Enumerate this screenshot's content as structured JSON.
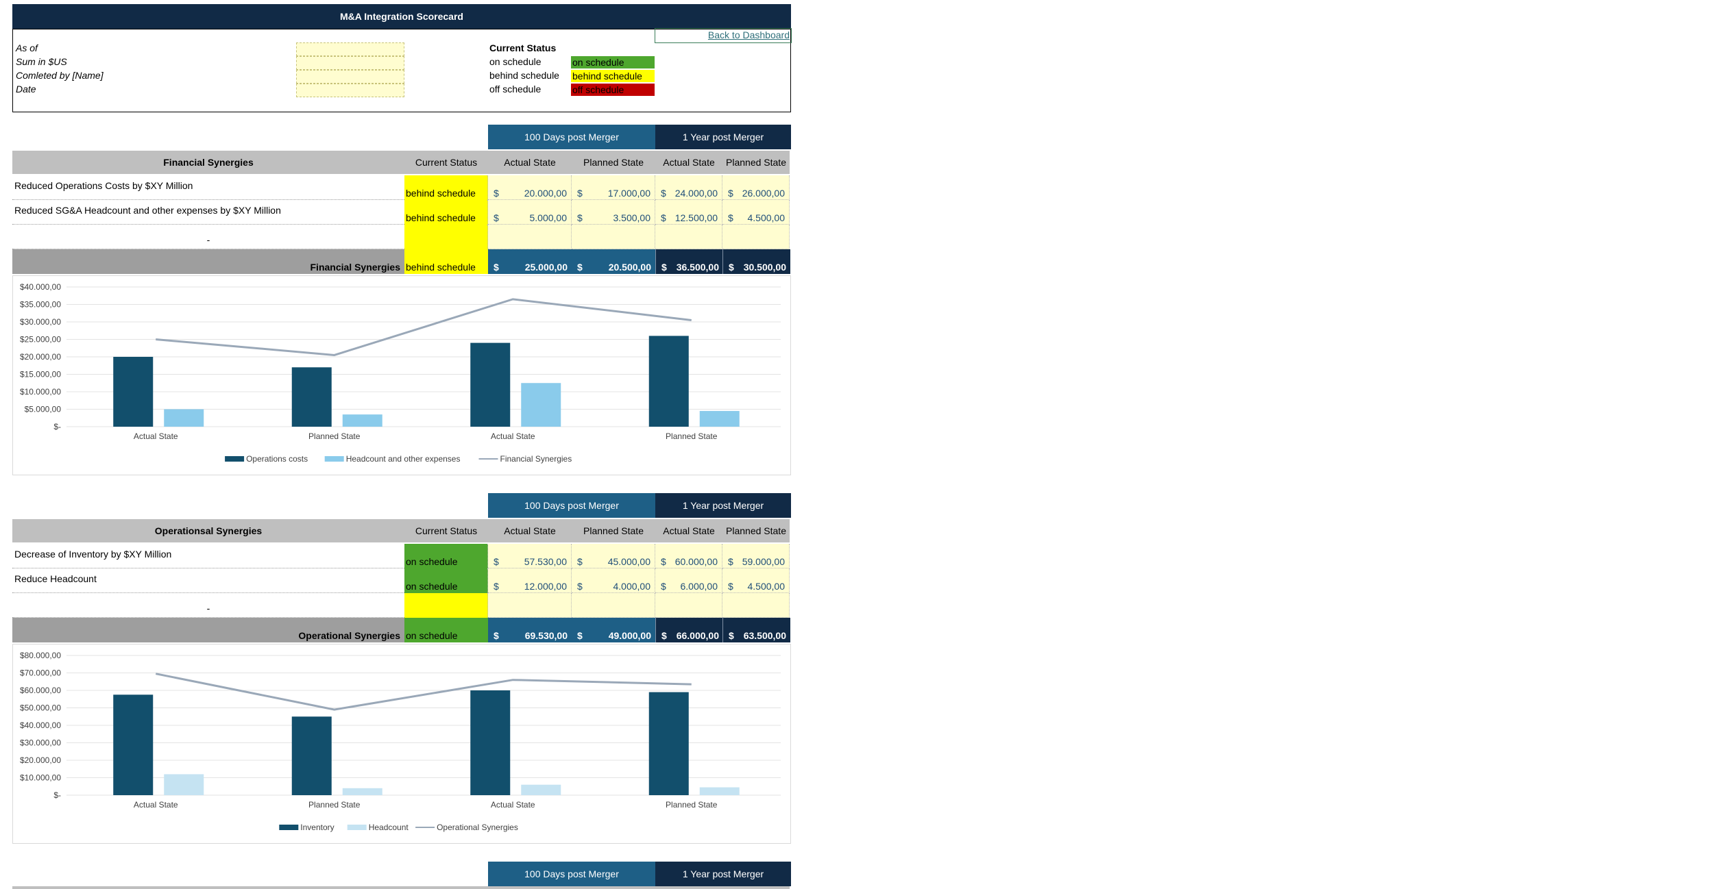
{
  "header": {
    "title": "M&A Integration Scorecard",
    "back_link": "Back to Dashboard"
  },
  "info": {
    "fields": [
      "As of",
      "Sum in $US",
      "Comleted by [Name]",
      "Date"
    ],
    "status_title": "Current Status",
    "legend": [
      {
        "label": "on schedule",
        "swatch": "on schedule",
        "color": "#4ea72e"
      },
      {
        "label": "behind schedule",
        "swatch": "behind schedule",
        "color": "#ffff00"
      },
      {
        "label": "off schedule",
        "swatch": "off schedule",
        "color": "#c00000"
      }
    ]
  },
  "colors": {
    "on schedule": "#4ea72e",
    "behind schedule": "#ffff00",
    "off schedule": "#c00000",
    "dark": "#112a46",
    "blue": "#1e5f86",
    "input_yellow": "#fffdd0"
  },
  "periods": {
    "a": "100 Days post Merger",
    "b": "1 Year post Merger"
  },
  "columns": {
    "status": "Current Status",
    "actual": "Actual State",
    "planned": "Planned State"
  },
  "sections": [
    {
      "title": "Financial Synergies",
      "rows": [
        {
          "label": "Reduced Operations Costs by $XY Million",
          "status": "behind schedule",
          "values": [
            "20.000,00",
            "17.000,00",
            "24.000,00",
            "26.000,00"
          ]
        },
        {
          "label": "Reduced SG&A Headcount and other expenses by $XY Million",
          "status": "behind schedule",
          "values": [
            "5.000,00",
            "3.500,00",
            "12.500,00",
            "4.500,00"
          ]
        },
        {
          "label": "-",
          "status": "",
          "values": [
            "",
            "",
            "",
            ""
          ]
        }
      ],
      "total": {
        "label": "Financial Synergies",
        "status": "behind schedule",
        "values": [
          "25.000,00",
          "20.500,00",
          "36.500,00",
          "30.500,00"
        ]
      }
    },
    {
      "title": "Operationsal Synergies",
      "rows": [
        {
          "label": "Decrease of Inventory by $XY Million",
          "status": "on schedule",
          "values": [
            "57.530,00",
            "45.000,00",
            "60.000,00",
            "59.000,00"
          ]
        },
        {
          "label": "Reduce Headcount",
          "status": "on schedule",
          "values": [
            "12.000,00",
            "4.000,00",
            "6.000,00",
            "4.500,00"
          ]
        },
        {
          "label": "-",
          "status": "",
          "values": [
            "",
            "",
            "",
            ""
          ]
        }
      ],
      "total": {
        "label": "Operational Synergies",
        "status": "on schedule",
        "values": [
          "69.530,00",
          "49.000,00",
          "66.000,00",
          "63.500,00"
        ]
      }
    }
  ],
  "currency_symbol": "$",
  "chart_data": [
    {
      "type": "bar",
      "categories": [
        "Actual State",
        "Planned State",
        "Actual State",
        "Planned State"
      ],
      "series": [
        {
          "name": "Operations costs",
          "type": "bar",
          "color": "#124f6c",
          "values": [
            20000,
            17000,
            24000,
            26000
          ]
        },
        {
          "name": "Headcount and other expenses",
          "type": "bar",
          "color": "#8acbeb",
          "values": [
            5000,
            3500,
            12500,
            4500
          ]
        },
        {
          "name": "Financial Synergies",
          "type": "line",
          "color": "#9aa8b8",
          "values": [
            25000,
            20500,
            36500,
            30500
          ]
        }
      ],
      "yticks": [
        "$40.000,00",
        "$35.000,00",
        "$30.000,00",
        "$25.000,00",
        "$20.000,00",
        "$15.000,00",
        "$10.000,00",
        "$5.000,00",
        "$-"
      ],
      "ylim": [
        0,
        40000
      ],
      "legend": "bottom",
      "grid": true
    },
    {
      "type": "bar",
      "categories": [
        "Actual State",
        "Planned State",
        "Actual State",
        "Planned State"
      ],
      "series": [
        {
          "name": "Inventory",
          "type": "bar",
          "color": "#124f6c",
          "values": [
            57530,
            45000,
            60000,
            59000
          ]
        },
        {
          "name": "Headcount",
          "type": "bar",
          "color": "#c5e3f2",
          "values": [
            12000,
            4000,
            6000,
            4500
          ]
        },
        {
          "name": "Operational Synergies",
          "type": "line",
          "color": "#9aa8b8",
          "values": [
            69530,
            49000,
            66000,
            63500
          ]
        }
      ],
      "yticks": [
        "$80.000,00",
        "$70.000,00",
        "$60.000,00",
        "$50.000,00",
        "$40.000,00",
        "$30.000,00",
        "$20.000,00",
        "$10.000,00",
        "$-"
      ],
      "ylim": [
        0,
        80000
      ],
      "legend": "bottom",
      "grid": true
    }
  ]
}
